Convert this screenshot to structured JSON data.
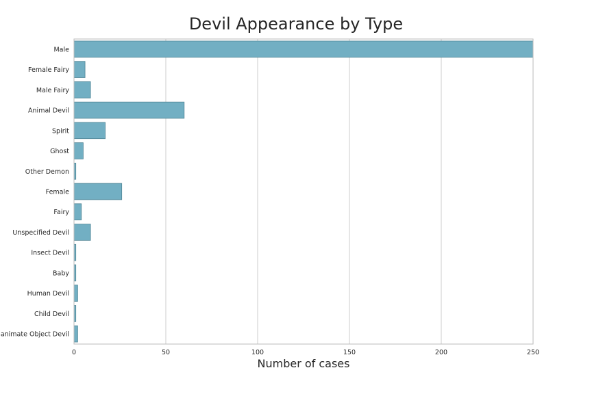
{
  "chart_data": {
    "type": "bar",
    "orientation": "horizontal",
    "title": "Devil Appearance by Type",
    "xlabel": "Number of cases",
    "ylabel": "",
    "xlim": [
      0,
      250
    ],
    "xticks": [
      0,
      50,
      100,
      150,
      200,
      250
    ],
    "categories": [
      "Male",
      "Female Fairy",
      "Male Fairy",
      "Animal Devil",
      "Spirit",
      "Ghost",
      "Other Demon",
      "Female",
      "Fairy",
      "Unspecified Devil",
      "Insect Devil",
      "Baby",
      "Human Devil",
      "Child Devil",
      "Inanimate Object Devil"
    ],
    "values": [
      250,
      6,
      9,
      60,
      17,
      5,
      1,
      26,
      4,
      9,
      1,
      1,
      2,
      1,
      2
    ],
    "grid": true,
    "bar_color": "#72afc3",
    "bar_edge_color": "#4f8494"
  }
}
